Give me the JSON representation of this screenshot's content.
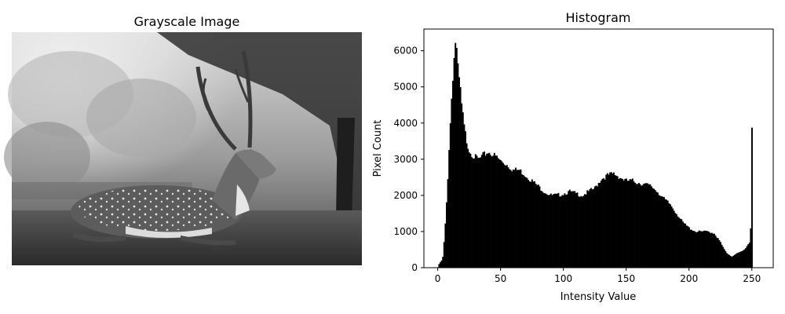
{
  "left_panel": {
    "title": "Grayscale Image"
  },
  "chart_data": {
    "type": "bar",
    "title": "Histogram",
    "xlabel": "Intensity Value",
    "ylabel": "Pixel Count",
    "xlim": [
      -11,
      267
    ],
    "ylim": [
      0,
      6600
    ],
    "xticks": [
      0,
      50,
      100,
      150,
      200,
      250
    ],
    "yticks": [
      0,
      1000,
      2000,
      3000,
      4000,
      5000,
      6000
    ],
    "grid": false,
    "bar_color": "#000000",
    "anchors": [
      [
        0,
        0
      ],
      [
        1,
        100
      ],
      [
        2,
        150
      ],
      [
        3,
        200
      ],
      [
        4,
        300
      ],
      [
        5,
        700
      ],
      [
        6,
        1200
      ],
      [
        7,
        1800
      ],
      [
        8,
        2500
      ],
      [
        9,
        3300
      ],
      [
        10,
        4000
      ],
      [
        11,
        4700
      ],
      [
        12,
        5300
      ],
      [
        13,
        5800
      ],
      [
        14,
        6250
      ],
      [
        15,
        6000
      ],
      [
        16,
        5500
      ],
      [
        17,
        5200
      ],
      [
        18,
        4900
      ],
      [
        19,
        4500
      ],
      [
        20,
        4200
      ],
      [
        21,
        3900
      ],
      [
        22,
        3700
      ],
      [
        23,
        3500
      ],
      [
        25,
        3250
      ],
      [
        28,
        3100
      ],
      [
        30,
        3050
      ],
      [
        33,
        3000
      ],
      [
        36,
        3100
      ],
      [
        40,
        3200
      ],
      [
        43,
        3150
      ],
      [
        47,
        3050
      ],
      [
        50,
        2950
      ],
      [
        55,
        2850
      ],
      [
        60,
        2700
      ],
      [
        65,
        2700
      ],
      [
        70,
        2550
      ],
      [
        75,
        2400
      ],
      [
        80,
        2250
      ],
      [
        85,
        2100
      ],
      [
        90,
        2000
      ],
      [
        95,
        2000
      ],
      [
        100,
        2050
      ],
      [
        105,
        2100
      ],
      [
        110,
        2050
      ],
      [
        115,
        2000
      ],
      [
        120,
        2100
      ],
      [
        125,
        2200
      ],
      [
        130,
        2450
      ],
      [
        135,
        2550
      ],
      [
        140,
        2600
      ],
      [
        145,
        2500
      ],
      [
        150,
        2400
      ],
      [
        155,
        2400
      ],
      [
        160,
        2350
      ],
      [
        165,
        2300
      ],
      [
        170,
        2250
      ],
      [
        175,
        2100
      ],
      [
        180,
        1900
      ],
      [
        185,
        1750
      ],
      [
        190,
        1500
      ],
      [
        195,
        1250
      ],
      [
        200,
        1100
      ],
      [
        205,
        1000
      ],
      [
        210,
        1000
      ],
      [
        215,
        1000
      ],
      [
        220,
        950
      ],
      [
        225,
        700
      ],
      [
        228,
        500
      ],
      [
        230,
        400
      ],
      [
        232,
        350
      ],
      [
        234,
        300
      ],
      [
        236,
        350
      ],
      [
        238,
        400
      ],
      [
        240,
        420
      ],
      [
        242,
        450
      ],
      [
        244,
        500
      ],
      [
        246,
        600
      ],
      [
        248,
        700
      ],
      [
        249,
        1100
      ],
      [
        250,
        3900
      ],
      [
        251,
        0
      ],
      [
        255,
        0
      ]
    ]
  }
}
